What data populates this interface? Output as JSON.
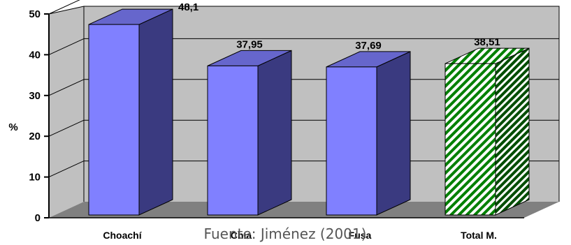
{
  "chart_data": {
    "type": "bar",
    "categories": [
      "Choachí",
      "Chía",
      "Fusa",
      "Total M."
    ],
    "values": [
      48.1,
      37.95,
      37.69,
      38.51
    ],
    "data_labels": [
      "48,1",
      "37,95",
      "37,69",
      "38,51"
    ],
    "ylabel": "%",
    "ylim": [
      0,
      50
    ],
    "yticks": [
      "0",
      "10",
      "20",
      "30",
      "40",
      "50"
    ],
    "grid": true,
    "colors": {
      "bar_front": "#8080ff",
      "bar_side": "#3a3a80",
      "bar_top": "#6666cc",
      "total_pattern_green": "#008000",
      "wall": "#c0c0c0",
      "floor": "#808080"
    }
  },
  "source": "Fuente: Jiménez (2001)"
}
